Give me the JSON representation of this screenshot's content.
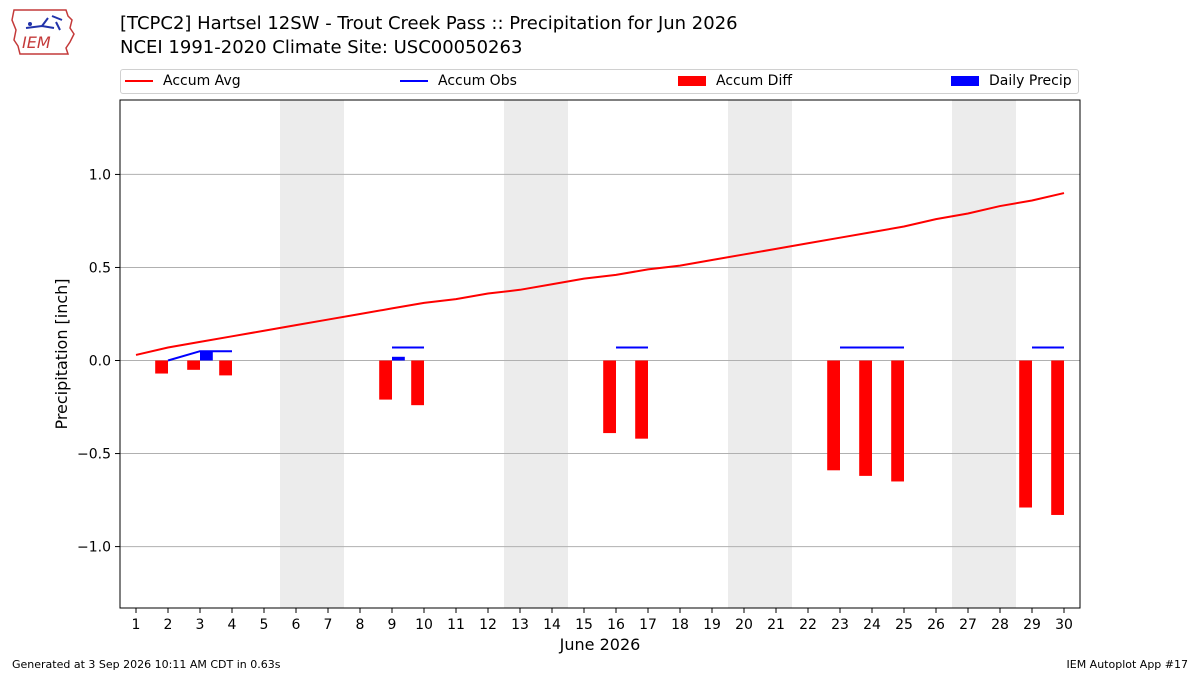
{
  "header": {
    "title_line1": "[TCPC2] Hartsel 12SW - Trout Creek Pass :: Precipitation for Jun 2026",
    "title_line2": "NCEI 1991-2020 Climate Site: USC00050263"
  },
  "logo": {
    "text": "IEM"
  },
  "legend": {
    "items": [
      {
        "label": "Accum Avg",
        "kind": "line",
        "color": "#ff0000"
      },
      {
        "label": "Accum Obs",
        "kind": "line",
        "color": "#0000ff"
      },
      {
        "label": "Accum Diff",
        "kind": "patch",
        "color": "#ff0000"
      },
      {
        "label": "Daily Precip",
        "kind": "patch",
        "color": "#0000ff"
      }
    ]
  },
  "footer": {
    "left": "Generated at 3 Sep 2026 10:11 AM CDT in 0.63s",
    "right": "IEM Autoplot App #17"
  },
  "chart_data": {
    "type": "bar",
    "xlabel": "June 2026",
    "ylabel": "Precipitation [inch]",
    "xlim": [
      0.5,
      30.5
    ],
    "ylim": [
      -1.33,
      1.4
    ],
    "yticks": [
      -1.0,
      -0.5,
      0.0,
      0.5,
      1.0
    ],
    "ytick_labels": [
      "−1.0",
      "−0.5",
      "0.0",
      "0.5",
      "1.0"
    ],
    "grid": "horizontal",
    "legend_position": "top",
    "weekend_shading": [
      [
        5.5,
        7.5
      ],
      [
        12.5,
        14.5
      ],
      [
        19.5,
        21.5
      ],
      [
        26.5,
        28.5
      ]
    ],
    "days": [
      1,
      2,
      3,
      4,
      5,
      6,
      7,
      8,
      9,
      10,
      11,
      12,
      13,
      14,
      15,
      16,
      17,
      18,
      19,
      20,
      21,
      22,
      23,
      24,
      25,
      26,
      27,
      28,
      29,
      30
    ],
    "accum_avg": [
      0.03,
      0.07,
      0.1,
      0.13,
      0.16,
      0.19,
      0.22,
      0.25,
      0.28,
      0.31,
      0.33,
      0.36,
      0.38,
      0.41,
      0.44,
      0.46,
      0.49,
      0.51,
      0.54,
      0.57,
      0.6,
      0.63,
      0.66,
      0.69,
      0.72,
      0.76,
      0.79,
      0.83,
      0.86,
      0.9
    ],
    "accum_obs_segments": [
      {
        "x": [
          2,
          3,
          4
        ],
        "y": [
          0.0,
          0.05,
          0.05
        ]
      },
      {
        "x": [
          9,
          10
        ],
        "y": [
          0.07,
          0.07
        ]
      },
      {
        "x": [
          16,
          17
        ],
        "y": [
          0.07,
          0.07
        ]
      },
      {
        "x": [
          23,
          24,
          25
        ],
        "y": [
          0.07,
          0.07,
          0.07
        ]
      },
      {
        "x": [
          29,
          30
        ],
        "y": [
          0.07,
          0.07
        ]
      }
    ],
    "accum_diff": [
      {
        "day": 2,
        "value": -0.07
      },
      {
        "day": 3,
        "value": -0.05
      },
      {
        "day": 4,
        "value": -0.08
      },
      {
        "day": 9,
        "value": -0.21
      },
      {
        "day": 10,
        "value": -0.24
      },
      {
        "day": 16,
        "value": -0.39
      },
      {
        "day": 17,
        "value": -0.42
      },
      {
        "day": 23,
        "value": -0.59
      },
      {
        "day": 24,
        "value": -0.62
      },
      {
        "day": 25,
        "value": -0.65
      },
      {
        "day": 29,
        "value": -0.79
      },
      {
        "day": 30,
        "value": -0.83
      }
    ],
    "daily_precip": [
      {
        "day": 3,
        "value": 0.05
      },
      {
        "day": 9,
        "value": 0.02
      }
    ],
    "colors": {
      "avg": "#ff0000",
      "obs": "#0000ff",
      "diff": "#ff0000",
      "precip": "#0000ff",
      "weekend": "#ececec",
      "grid": "#b0b0b0"
    }
  }
}
